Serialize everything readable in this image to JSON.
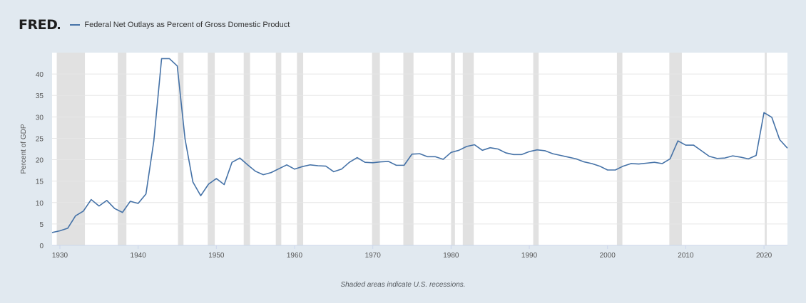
{
  "header": {
    "logo": "FRED",
    "series_title": "Federal Net Outlays as Percent of Gross Domestic Product"
  },
  "footnote": "Shaded areas indicate U.S. recessions.",
  "colors": {
    "page_bg": "#e1e9f0",
    "plot_bg": "#ffffff",
    "line": "#4572a7",
    "recession": "#e1e1e1",
    "grid": "#e6e6e6"
  },
  "chart_data": {
    "type": "line",
    "ylabel": "Percent of GDP",
    "xlabel": "",
    "ylim": [
      0,
      45
    ],
    "xlim": [
      1929,
      2023
    ],
    "yticks": [
      0,
      5,
      10,
      15,
      20,
      25,
      30,
      35,
      40
    ],
    "xticks": [
      1930,
      1940,
      1950,
      1960,
      1970,
      1980,
      1990,
      2000,
      2010,
      2020
    ],
    "grid": true,
    "recessions": [
      [
        1929.6,
        1933.2
      ],
      [
        1937.4,
        1938.5
      ],
      [
        1945.1,
        1945.8
      ],
      [
        1948.9,
        1949.8
      ],
      [
        1953.5,
        1954.3
      ],
      [
        1957.6,
        1958.3
      ],
      [
        1960.3,
        1961.1
      ],
      [
        1969.9,
        1970.9
      ],
      [
        1973.9,
        1975.2
      ],
      [
        1980.0,
        1980.5
      ],
      [
        1981.5,
        1982.9
      ],
      [
        1990.5,
        1991.2
      ],
      [
        2001.2,
        2001.9
      ],
      [
        2007.9,
        2009.5
      ],
      [
        2020.1,
        2020.35
      ]
    ],
    "series": [
      {
        "values": [
          [
            1929,
            3.0
          ],
          [
            1930,
            3.4
          ],
          [
            1931,
            4.0
          ],
          [
            1932,
            6.9
          ],
          [
            1933,
            8.0
          ],
          [
            1934,
            10.7
          ],
          [
            1935,
            9.2
          ],
          [
            1936,
            10.5
          ],
          [
            1937,
            8.6
          ],
          [
            1938,
            7.7
          ],
          [
            1939,
            10.3
          ],
          [
            1940,
            9.8
          ],
          [
            1941,
            12.0
          ],
          [
            1942,
            24.3
          ],
          [
            1943,
            43.6
          ],
          [
            1944,
            43.6
          ],
          [
            1945,
            41.9
          ],
          [
            1946,
            24.8
          ],
          [
            1947,
            14.8
          ],
          [
            1948,
            11.6
          ],
          [
            1949,
            14.3
          ],
          [
            1950,
            15.6
          ],
          [
            1951,
            14.2
          ],
          [
            1952,
            19.4
          ],
          [
            1953,
            20.4
          ],
          [
            1954,
            18.8
          ],
          [
            1955,
            17.3
          ],
          [
            1956,
            16.5
          ],
          [
            1957,
            17.0
          ],
          [
            1958,
            17.9
          ],
          [
            1959,
            18.8
          ],
          [
            1960,
            17.8
          ],
          [
            1961,
            18.4
          ],
          [
            1962,
            18.8
          ],
          [
            1963,
            18.6
          ],
          [
            1964,
            18.5
          ],
          [
            1965,
            17.2
          ],
          [
            1966,
            17.8
          ],
          [
            1967,
            19.4
          ],
          [
            1968,
            20.5
          ],
          [
            1969,
            19.4
          ],
          [
            1970,
            19.3
          ],
          [
            1971,
            19.5
          ],
          [
            1972,
            19.6
          ],
          [
            1973,
            18.7
          ],
          [
            1974,
            18.7
          ],
          [
            1975,
            21.3
          ],
          [
            1976,
            21.4
          ],
          [
            1977,
            20.7
          ],
          [
            1978,
            20.7
          ],
          [
            1979,
            20.1
          ],
          [
            1980,
            21.7
          ],
          [
            1981,
            22.2
          ],
          [
            1982,
            23.1
          ],
          [
            1983,
            23.5
          ],
          [
            1984,
            22.2
          ],
          [
            1985,
            22.8
          ],
          [
            1986,
            22.5
          ],
          [
            1987,
            21.6
          ],
          [
            1988,
            21.2
          ],
          [
            1989,
            21.2
          ],
          [
            1990,
            21.9
          ],
          [
            1991,
            22.3
          ],
          [
            1992,
            22.1
          ],
          [
            1993,
            21.4
          ],
          [
            1994,
            21.0
          ],
          [
            1995,
            20.6
          ],
          [
            1996,
            20.2
          ],
          [
            1997,
            19.5
          ],
          [
            1998,
            19.1
          ],
          [
            1999,
            18.5
          ],
          [
            2000,
            17.6
          ],
          [
            2001,
            17.6
          ],
          [
            2002,
            18.5
          ],
          [
            2003,
            19.1
          ],
          [
            2004,
            19.0
          ],
          [
            2005,
            19.2
          ],
          [
            2006,
            19.4
          ],
          [
            2007,
            19.1
          ],
          [
            2008,
            20.2
          ],
          [
            2009,
            24.4
          ],
          [
            2010,
            23.4
          ],
          [
            2011,
            23.4
          ],
          [
            2012,
            22.1
          ],
          [
            2013,
            20.8
          ],
          [
            2014,
            20.3
          ],
          [
            2015,
            20.4
          ],
          [
            2016,
            20.9
          ],
          [
            2017,
            20.6
          ],
          [
            2018,
            20.2
          ],
          [
            2019,
            21.0
          ],
          [
            2020,
            31.0
          ],
          [
            2021,
            29.9
          ],
          [
            2022,
            24.7
          ],
          [
            2023,
            22.7
          ]
        ]
      }
    ]
  }
}
